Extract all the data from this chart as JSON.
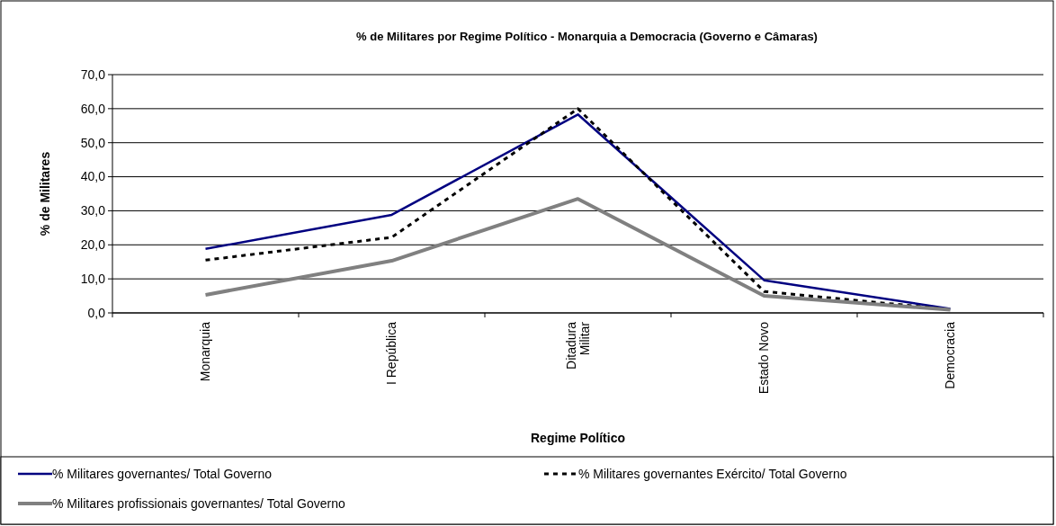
{
  "chart_data": {
    "type": "line",
    "title": "% de Militares por Regime Político - Monarquia a Democracia (Governo e Câmaras)",
    "xlabel": "Regime Político",
    "ylabel": "% de Militares",
    "categories": [
      "Monarquia",
      "I República",
      "Ditadura Militar",
      "Estado Novo",
      "Democracia"
    ],
    "series": [
      {
        "name": "% Militares governantes/ Total Governo",
        "color": "#000080",
        "line_style": "solid",
        "values": [
          18.8,
          28.8,
          58.3,
          9.6,
          1.2
        ]
      },
      {
        "name": "% Militares governantes Exército/ Total Governo",
        "color": "#000000",
        "line_style": "dashed",
        "values": [
          15.5,
          22.2,
          60.0,
          6.3,
          1.0
        ]
      },
      {
        "name": "% Militares profissionais governantes/ Total Governo",
        "color": "#808080",
        "line_style": "solid",
        "values": [
          5.3,
          15.3,
          33.5,
          5.0,
          0.9
        ]
      }
    ],
    "ylim": [
      0,
      70
    ],
    "yticks": [
      {
        "value": 0,
        "label": "0,0"
      },
      {
        "value": 10,
        "label": "10,0"
      },
      {
        "value": 20,
        "label": "20,0"
      },
      {
        "value": 30,
        "label": "30,0"
      },
      {
        "value": 40,
        "label": "40,0"
      },
      {
        "value": 50,
        "label": "50,0"
      },
      {
        "value": 60,
        "label": "60,0"
      },
      {
        "value": 70,
        "label": "70,0"
      }
    ],
    "grid": "y",
    "legend": "bottom",
    "marker": "none"
  }
}
